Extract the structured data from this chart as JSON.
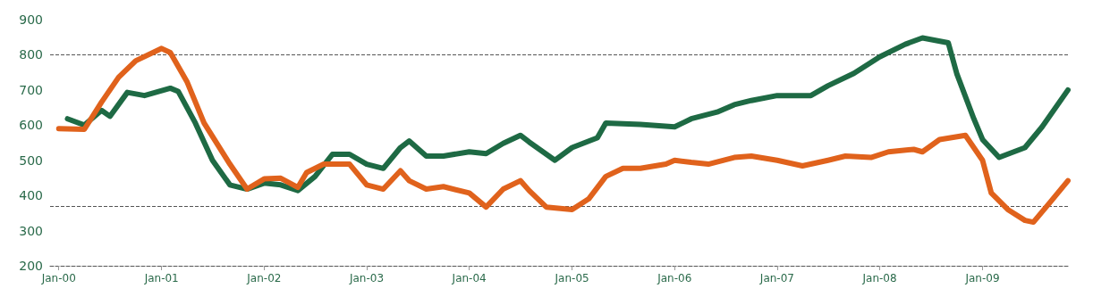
{
  "chart_data": {
    "type": "line",
    "ylim": [
      200,
      900
    ],
    "yticks": [
      200,
      300,
      400,
      500,
      600,
      700,
      800,
      900
    ],
    "xlim": [
      "1999-12",
      "2009-11"
    ],
    "xticks": [
      {
        "value": "2000-01",
        "label": "Jan-00"
      },
      {
        "value": "2001-01",
        "label": "Jan-01"
      },
      {
        "value": "2002-01",
        "label": "Jan-02"
      },
      {
        "value": "2003-01",
        "label": "Jan-03"
      },
      {
        "value": "2004-01",
        "label": "Jan-04"
      },
      {
        "value": "2005-01",
        "label": "Jan-05"
      },
      {
        "value": "2006-01",
        "label": "Jan-06"
      },
      {
        "value": "2007-01",
        "label": "Jan-07"
      },
      {
        "value": "2008-01",
        "label": "Jan-08"
      },
      {
        "value": "2009-01",
        "label": "Jan-09"
      }
    ],
    "grid": false,
    "marker": "none",
    "line_style": "solid",
    "ref_lines": [
      {
        "axis": "y",
        "value": 800,
        "color": "#555555",
        "line_style": "dashed"
      },
      {
        "axis": "y",
        "value": 370,
        "color": "#555555",
        "line_style": "dashed"
      }
    ],
    "series": [
      {
        "color": "#1e6a44",
        "x": [
          "2000-02",
          "2000-04",
          "2000-06",
          "2000-07",
          "2000-09",
          "2000-11",
          "2001-02",
          "2001-03",
          "2001-05",
          "2001-07",
          "2001-09",
          "2001-11",
          "2002-01",
          "2002-03",
          "2002-05",
          "2002-07",
          "2002-09",
          "2002-11",
          "2003-01",
          "2003-03",
          "2003-05",
          "2003-06",
          "2003-08",
          "2003-10",
          "2004-01",
          "2004-03",
          "2004-05",
          "2004-07",
          "2004-08",
          "2004-11",
          "2005-01",
          "2005-04",
          "2005-05",
          "2005-09",
          "2006-01",
          "2006-03",
          "2006-06",
          "2006-08",
          "2006-10",
          "2007-01",
          "2007-05",
          "2007-07",
          "2007-10",
          "2008-01",
          "2008-04",
          "2008-06",
          "2008-09",
          "2008-10",
          "2008-12",
          "2009-01",
          "2009-03",
          "2009-06",
          "2009-08",
          "2009-11"
        ],
        "values": [
          618,
          600,
          642,
          625,
          693,
          684,
          705,
          696,
          606,
          500,
          430,
          418,
          435,
          430,
          414,
          454,
          517,
          517,
          489,
          477,
          536,
          555,
          512,
          512,
          524,
          519,
          548,
          571,
          552,
          500,
          536,
          564,
          606,
          602,
          595,
          618,
          637,
          658,
          670,
          684,
          684,
          712,
          747,
          794,
          830,
          848,
          834,
          747,
          618,
          559,
          508,
          536,
          595,
          700
        ]
      },
      {
        "color": "#e0621c",
        "x": [
          "2000-01",
          "2000-04",
          "2000-06",
          "2000-08",
          "2000-10",
          "2001-01",
          "2001-02",
          "2001-04",
          "2001-06",
          "2001-09",
          "2001-11",
          "2002-01",
          "2002-03",
          "2002-05",
          "2002-06",
          "2002-08",
          "2002-11",
          "2003-01",
          "2003-03",
          "2003-05",
          "2003-06",
          "2003-08",
          "2003-10",
          "2004-01",
          "2004-03",
          "2004-05",
          "2004-07",
          "2004-08",
          "2004-10",
          "2005-01",
          "2005-03",
          "2005-05",
          "2005-07",
          "2005-09",
          "2005-12",
          "2006-01",
          "2006-03",
          "2006-05",
          "2006-08",
          "2006-10",
          "2007-01",
          "2007-04",
          "2007-07",
          "2007-09",
          "2007-12",
          "2008-02",
          "2008-05",
          "2008-06",
          "2008-08",
          "2008-11",
          "2009-01",
          "2009-02",
          "2009-04",
          "2009-06",
          "2009-07",
          "2009-09",
          "2009-11"
        ],
        "values": [
          590,
          588,
          665,
          736,
          783,
          818,
          806,
          724,
          606,
          489,
          418,
          447,
          449,
          423,
          465,
          489,
          489,
          430,
          418,
          470,
          442,
          418,
          425,
          407,
          367,
          418,
          442,
          414,
          367,
          360,
          390,
          454,
          477,
          477,
          489,
          500,
          494,
          489,
          508,
          512,
          500,
          484,
          500,
          512,
          508,
          524,
          531,
          524,
          559,
          571,
          500,
          407,
          360,
          329,
          324,
          383,
          442
        ]
      }
    ]
  }
}
